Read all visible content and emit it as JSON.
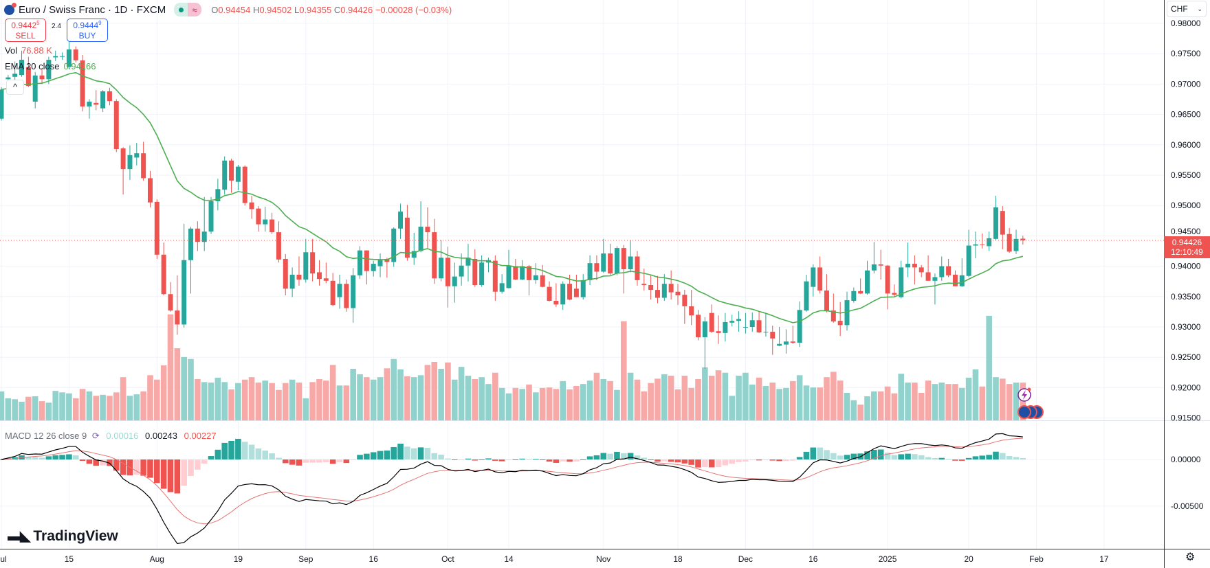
{
  "header": {
    "title": "Euro / Swiss Franc · 1D · FXCM",
    "market_status": "≈",
    "o_label": "O",
    "o": "0.94454",
    "h_label": "H",
    "h": "0.94502",
    "l_label": "L",
    "l": "0.94355",
    "c_label": "C",
    "c": "0.94426",
    "change": "−0.00028 (−0.03%)"
  },
  "trade": {
    "sell_price": "0.9442",
    "sell_sup": "5",
    "sell_label": "SELL",
    "spread": "2.4",
    "buy_price": "0.9444",
    "buy_sup": "9",
    "buy_label": "BUY"
  },
  "legends": {
    "vol_label": "Vol",
    "vol_value": "76.88 K",
    "ema_label": "EMA 20 close",
    "ema_value": "0.94166",
    "collapse": "^",
    "macd_label": "MACD 12 26 close 9",
    "macd_hist": "0.00016",
    "macd_value": "0.00243",
    "macd_signal": "0.00227"
  },
  "price_axis": {
    "currency": "CHF",
    "ticks": [
      "0.98000",
      "0.97500",
      "0.97000",
      "0.96500",
      "0.96000",
      "0.95500",
      "0.95000",
      "0.94500",
      "0.94000",
      "0.93500",
      "0.93000",
      "0.92500",
      "0.92000",
      "0.91500"
    ],
    "current_price": "0.94426",
    "countdown": "12:10:49"
  },
  "macd_axis": {
    "ticks": [
      "0.00000",
      "-0.00500"
    ]
  },
  "time_axis": {
    "labels": [
      {
        "text": "Jul",
        "bar": 0
      },
      {
        "text": "15",
        "bar": 10
      },
      {
        "text": "Aug",
        "bar": 23
      },
      {
        "text": "19",
        "bar": 35
      },
      {
        "text": "Sep",
        "bar": 45
      },
      {
        "text": "16",
        "bar": 55
      },
      {
        "text": "Oct",
        "bar": 66
      },
      {
        "text": "14",
        "bar": 75
      },
      {
        "text": "Nov",
        "bar": 89
      },
      {
        "text": "18",
        "bar": 100
      },
      {
        "text": "Dec",
        "bar": 110
      },
      {
        "text": "16",
        "bar": 120
      },
      {
        "text": "2025",
        "bar": 131
      },
      {
        "text": "20",
        "bar": 143
      },
      {
        "text": "Feb",
        "bar": 153
      },
      {
        "text": "17",
        "bar": 163
      }
    ]
  },
  "brand": "TradingView",
  "colors": {
    "up": "#26a69a",
    "down": "#ef5350",
    "vol_up": "#92d2cc",
    "vol_down": "#f7a9a7",
    "ema": "#4caf50",
    "macd": "#000000",
    "signal": "#e57373",
    "hist_up_grow": "#26a69a",
    "hist_up_fall": "#b2dfdb",
    "hist_dn_grow": "#ffcdd2",
    "hist_dn_fall": "#ef5350"
  },
  "chart_data": [
    {
      "type": "candlestick",
      "series_fields": [
        "open",
        "high",
        "low",
        "close"
      ],
      "ylim": [
        0.915,
        0.98
      ],
      "ohlc": [
        [
          0.9643,
          0.9695,
          0.964,
          0.9691
        ],
        [
          0.9708,
          0.9715,
          0.9684,
          0.9711
        ],
        [
          0.9712,
          0.9737,
          0.9705,
          0.9717
        ],
        [
          0.9715,
          0.9755,
          0.9712,
          0.974
        ],
        [
          0.9728,
          0.9745,
          0.9695,
          0.9697
        ],
        [
          0.9671,
          0.972,
          0.966,
          0.9714
        ],
        [
          0.9714,
          0.9725,
          0.97,
          0.9708
        ],
        [
          0.9708,
          0.9745,
          0.97,
          0.974
        ],
        [
          0.9744,
          0.9755,
          0.9738,
          0.9746
        ],
        [
          0.9745,
          0.9752,
          0.974,
          0.9746
        ],
        [
          0.9728,
          0.9773,
          0.9725,
          0.9757
        ],
        [
          0.9757,
          0.9762,
          0.9736,
          0.9739
        ],
        [
          0.9739,
          0.9748,
          0.9655,
          0.9663
        ],
        [
          0.9663,
          0.9675,
          0.9643,
          0.9671
        ],
        [
          0.9669,
          0.969,
          0.9657,
          0.9666
        ],
        [
          0.966,
          0.969,
          0.9654,
          0.9688
        ],
        [
          0.9688,
          0.9694,
          0.9665,
          0.9672
        ],
        [
          0.9672,
          0.9675,
          0.9588,
          0.9593
        ],
        [
          0.9594,
          0.9596,
          0.9518,
          0.956
        ],
        [
          0.956,
          0.9599,
          0.9542,
          0.9583
        ],
        [
          0.9579,
          0.9603,
          0.9566,
          0.9586
        ],
        [
          0.9586,
          0.9605,
          0.9541,
          0.9545
        ],
        [
          0.9545,
          0.9557,
          0.9497,
          0.9505
        ],
        [
          0.9506,
          0.951,
          0.9412,
          0.9419
        ],
        [
          0.9419,
          0.9439,
          0.9352,
          0.9354
        ],
        [
          0.9354,
          0.9374,
          0.9325,
          0.9327
        ],
        [
          0.9327,
          0.9385,
          0.9287,
          0.9304
        ],
        [
          0.9304,
          0.947,
          0.9299,
          0.941
        ],
        [
          0.941,
          0.9465,
          0.9355,
          0.9462
        ],
        [
          0.9462,
          0.9474,
          0.9425,
          0.944
        ],
        [
          0.944,
          0.9514,
          0.9425,
          0.9457
        ],
        [
          0.9457,
          0.9514,
          0.9453,
          0.9507
        ],
        [
          0.9507,
          0.9544,
          0.9492,
          0.9527
        ],
        [
          0.9526,
          0.9581,
          0.9518,
          0.9574
        ],
        [
          0.9574,
          0.9577,
          0.9521,
          0.9541
        ],
        [
          0.9539,
          0.9567,
          0.9525,
          0.9564
        ],
        [
          0.9564,
          0.9566,
          0.95,
          0.9504
        ],
        [
          0.9505,
          0.9516,
          0.9478,
          0.9494
        ],
        [
          0.9495,
          0.9499,
          0.9457,
          0.9469
        ],
        [
          0.9469,
          0.9498,
          0.9457,
          0.9477
        ],
        [
          0.9477,
          0.9488,
          0.9453,
          0.9456
        ],
        [
          0.9456,
          0.9474,
          0.9406,
          0.9411
        ],
        [
          0.9412,
          0.942,
          0.9352,
          0.9363
        ],
        [
          0.9363,
          0.9398,
          0.9349,
          0.9386
        ],
        [
          0.9386,
          0.9416,
          0.9368,
          0.9378
        ],
        [
          0.9378,
          0.9445,
          0.9373,
          0.9423
        ],
        [
          0.9423,
          0.9445,
          0.9375,
          0.9388
        ],
        [
          0.939,
          0.941,
          0.9368,
          0.9379
        ],
        [
          0.938,
          0.9406,
          0.9372,
          0.9376
        ],
        [
          0.9376,
          0.9389,
          0.9334,
          0.9336
        ],
        [
          0.9349,
          0.9386,
          0.933,
          0.9371
        ],
        [
          0.9371,
          0.9378,
          0.9325,
          0.9331
        ],
        [
          0.9331,
          0.9397,
          0.9307,
          0.9385
        ],
        [
          0.9385,
          0.9433,
          0.9379,
          0.9426
        ],
        [
          0.9426,
          0.9426,
          0.937,
          0.9392
        ],
        [
          0.9392,
          0.9409,
          0.9383,
          0.9404
        ],
        [
          0.94,
          0.9421,
          0.9382,
          0.941
        ],
        [
          0.9412,
          0.9414,
          0.9381,
          0.9407
        ],
        [
          0.9407,
          0.9464,
          0.9399,
          0.9462
        ],
        [
          0.9462,
          0.9503,
          0.9445,
          0.949
        ],
        [
          0.948,
          0.9501,
          0.9409,
          0.9414
        ],
        [
          0.9414,
          0.9455,
          0.9402,
          0.9425
        ],
        [
          0.9425,
          0.9507,
          0.9423,
          0.9465
        ],
        [
          0.9465,
          0.9497,
          0.943,
          0.9456
        ],
        [
          0.9456,
          0.9478,
          0.9371,
          0.938
        ],
        [
          0.938,
          0.9443,
          0.9375,
          0.9414
        ],
        [
          0.9414,
          0.9432,
          0.9332,
          0.9367
        ],
        [
          0.9367,
          0.9406,
          0.934,
          0.9383
        ],
        [
          0.9383,
          0.9421,
          0.9368,
          0.9401
        ],
        [
          0.9401,
          0.9437,
          0.9375,
          0.9414
        ],
        [
          0.9412,
          0.9428,
          0.9366,
          0.9369
        ],
        [
          0.9369,
          0.9418,
          0.9366,
          0.9406
        ],
        [
          0.9406,
          0.9414,
          0.939,
          0.941
        ],
        [
          0.9409,
          0.9418,
          0.9343,
          0.9358
        ],
        [
          0.9358,
          0.9387,
          0.9355,
          0.9372
        ],
        [
          0.9364,
          0.9427,
          0.9363,
          0.94
        ],
        [
          0.94,
          0.9412,
          0.9377,
          0.9378
        ],
        [
          0.9378,
          0.941,
          0.9377,
          0.94
        ],
        [
          0.94,
          0.9402,
          0.9352,
          0.9377
        ],
        [
          0.9377,
          0.9405,
          0.9371,
          0.9385
        ],
        [
          0.9385,
          0.9402,
          0.9365,
          0.9366
        ],
        [
          0.9366,
          0.9375,
          0.9342,
          0.9343
        ],
        [
          0.9343,
          0.9372,
          0.9333,
          0.9337
        ],
        [
          0.9337,
          0.9375,
          0.9328,
          0.9371
        ],
        [
          0.9371,
          0.9386,
          0.9344,
          0.9345
        ],
        [
          0.9363,
          0.9386,
          0.9349,
          0.9349
        ],
        [
          0.9349,
          0.9387,
          0.9345,
          0.9377
        ],
        [
          0.9377,
          0.9418,
          0.9369,
          0.9405
        ],
        [
          0.9405,
          0.9418,
          0.9377,
          0.9391
        ],
        [
          0.9391,
          0.9445,
          0.9389,
          0.9421
        ],
        [
          0.9421,
          0.9437,
          0.9386,
          0.9388
        ],
        [
          0.9388,
          0.9433,
          0.9385,
          0.943
        ],
        [
          0.943,
          0.9435,
          0.9355,
          0.9395
        ],
        [
          0.9395,
          0.9443,
          0.939,
          0.9416
        ],
        [
          0.9416,
          0.9425,
          0.9368,
          0.9377
        ],
        [
          0.9371,
          0.9396,
          0.936,
          0.9369
        ],
        [
          0.9369,
          0.9386,
          0.9345,
          0.9361
        ],
        [
          0.9361,
          0.9384,
          0.9339,
          0.9348
        ],
        [
          0.9348,
          0.9387,
          0.9343,
          0.9371
        ],
        [
          0.9371,
          0.9393,
          0.9345,
          0.9357
        ],
        [
          0.9358,
          0.9371,
          0.9336,
          0.9352
        ],
        [
          0.9353,
          0.9361,
          0.9305,
          0.9334
        ],
        [
          0.9334,
          0.9361,
          0.9303,
          0.9319
        ],
        [
          0.932,
          0.9328,
          0.9278,
          0.9283
        ],
        [
          0.9283,
          0.9316,
          0.9231,
          0.9309
        ],
        [
          0.9323,
          0.9337,
          0.929,
          0.9292
        ],
        [
          0.9293,
          0.9319,
          0.9272,
          0.929
        ],
        [
          0.929,
          0.9323,
          0.9276,
          0.9308
        ],
        [
          0.9307,
          0.932,
          0.9301,
          0.931
        ],
        [
          0.931,
          0.9326,
          0.9292,
          0.9313
        ],
        [
          0.93,
          0.9323,
          0.9289,
          0.93
        ],
        [
          0.93,
          0.9324,
          0.9292,
          0.9311
        ],
        [
          0.9311,
          0.9326,
          0.929,
          0.9291
        ],
        [
          0.9292,
          0.9322,
          0.9284,
          0.9292
        ],
        [
          0.9292,
          0.9302,
          0.9254,
          0.9281
        ],
        [
          0.9269,
          0.93,
          0.9268,
          0.9272
        ],
        [
          0.9271,
          0.9296,
          0.9256,
          0.9276
        ],
        [
          0.9276,
          0.9302,
          0.9272,
          0.9274
        ],
        [
          0.9274,
          0.9342,
          0.9267,
          0.9328
        ],
        [
          0.9327,
          0.9386,
          0.9325,
          0.9375
        ],
        [
          0.9366,
          0.9403,
          0.935,
          0.9398
        ],
        [
          0.9398,
          0.9416,
          0.9355,
          0.936
        ],
        [
          0.936,
          0.9387,
          0.9324,
          0.9327
        ],
        [
          0.9327,
          0.9355,
          0.9307,
          0.9309
        ],
        [
          0.931,
          0.9341,
          0.9285,
          0.9303
        ],
        [
          0.9303,
          0.9358,
          0.9294,
          0.9344
        ],
        [
          0.9343,
          0.9365,
          0.934,
          0.9359
        ],
        [
          0.9359,
          0.938,
          0.9354,
          0.9355
        ],
        [
          0.9355,
          0.9409,
          0.9353,
          0.9393
        ],
        [
          0.9393,
          0.944,
          0.9388,
          0.9403
        ],
        [
          0.9403,
          0.9427,
          0.9378,
          0.9401
        ],
        [
          0.9401,
          0.9402,
          0.9329,
          0.9355
        ],
        [
          0.9356,
          0.937,
          0.935,
          0.9353
        ],
        [
          0.9349,
          0.9409,
          0.9347,
          0.9398
        ],
        [
          0.9398,
          0.9439,
          0.9382,
          0.9404
        ],
        [
          0.9404,
          0.9418,
          0.937,
          0.9398
        ],
        [
          0.9398,
          0.9402,
          0.9382,
          0.939
        ],
        [
          0.939,
          0.9418,
          0.9376,
          0.9376
        ],
        [
          0.9376,
          0.9388,
          0.9337,
          0.9382
        ],
        [
          0.9382,
          0.9416,
          0.9376,
          0.94
        ],
        [
          0.94,
          0.9412,
          0.9382,
          0.9385
        ],
        [
          0.9386,
          0.9393,
          0.9367,
          0.9367
        ],
        [
          0.9367,
          0.9413,
          0.9366,
          0.9385
        ],
        [
          0.9384,
          0.946,
          0.9382,
          0.9434
        ],
        [
          0.9434,
          0.9457,
          0.9413,
          0.9436
        ],
        [
          0.9436,
          0.9454,
          0.9429,
          0.9435
        ],
        [
          0.9433,
          0.9457,
          0.9425,
          0.9446
        ],
        [
          0.9445,
          0.9516,
          0.9443,
          0.9497
        ],
        [
          0.9491,
          0.9499,
          0.9428,
          0.9452
        ],
        [
          0.9453,
          0.9463,
          0.9422,
          0.9424
        ],
        [
          0.9425,
          0.946,
          0.942,
          0.9445
        ],
        [
          0.94454,
          0.94502,
          0.94355,
          0.94426
        ]
      ],
      "volume_unit": "K",
      "volume": [
        59,
        45,
        43,
        38,
        48,
        49,
        39,
        36,
        60,
        57,
        55,
        45,
        64,
        59,
        50,
        52,
        50,
        57,
        88,
        50,
        53,
        59,
        92,
        83,
        112,
        216,
        147,
        129,
        125,
        84,
        78,
        77,
        87,
        78,
        63,
        76,
        83,
        88,
        77,
        81,
        76,
        62,
        76,
        83,
        77,
        45,
        78,
        84,
        81,
        113,
        71,
        71,
        105,
        94,
        88,
        83,
        88,
        106,
        125,
        104,
        90,
        88,
        92,
        113,
        119,
        105,
        118,
        83,
        109,
        91,
        84,
        88,
        74,
        97,
        66,
        55,
        66,
        64,
        73,
        57,
        66,
        67,
        64,
        80,
        63,
        70,
        74,
        81,
        97,
        84,
        80,
        62,
        202,
        97,
        83,
        59,
        76,
        85,
        94,
        91,
        63,
        91,
        66,
        84,
        108,
        91,
        102,
        97,
        50,
        91,
        97,
        73,
        87,
        70,
        77,
        64,
        66,
        80,
        92,
        71,
        67,
        67,
        88,
        99,
        81,
        56,
        41,
        32,
        49,
        59,
        59,
        69,
        55,
        95,
        77,
        77,
        56,
        81,
        74,
        77,
        74,
        74,
        66,
        87,
        104,
        69,
        213,
        88,
        85,
        74,
        77,
        76.88
      ],
      "overlays": [
        {
          "name": "EMA 20 close",
          "period": 20
        }
      ]
    },
    {
      "type": "line",
      "indicator": "MACD 12 26 close 9",
      "fast": 12,
      "slow": 26,
      "signal": 9,
      "ylim": [
        -0.0095,
        0.0045
      ]
    }
  ]
}
